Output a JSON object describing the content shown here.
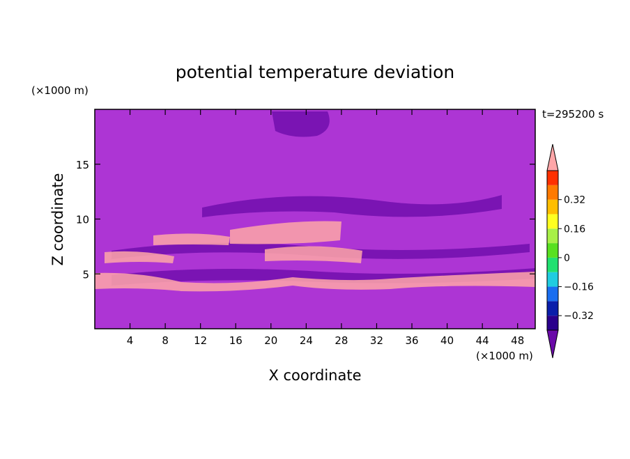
{
  "chart_data": {
    "type": "heatmap",
    "title": "potential temperature deviation",
    "xlabel": "X coordinate",
    "ylabel": "Z coordinate",
    "x_unit": "(×1000 m)",
    "y_unit": "(×1000 m)",
    "time_label": "t=295200 s",
    "xlim": [
      0,
      50
    ],
    "ylim": [
      0,
      20
    ],
    "x_ticks": [
      4,
      8,
      12,
      16,
      20,
      24,
      28,
      32,
      36,
      40,
      44,
      48
    ],
    "y_ticks": [
      5,
      10,
      15
    ],
    "x_tick_labels": [
      "4",
      "8",
      "12",
      "16",
      "20",
      "24",
      "28",
      "32",
      "36",
      "40",
      "44",
      "48"
    ],
    "y_tick_labels": [
      "5",
      "10",
      "15"
    ],
    "colorbar": {
      "levels": [
        -0.4,
        -0.32,
        -0.24,
        -0.16,
        -0.08,
        0,
        0.08,
        0.16,
        0.24,
        0.32,
        0.4
      ],
      "colors": [
        "#6a0aa8",
        "#2a008c",
        "#0a1eaa",
        "#1a6ef0",
        "#20cce0",
        "#20e070",
        "#58e020",
        "#a8f048",
        "#ffff20",
        "#ffbe00",
        "#ff7a00",
        "#ff3000",
        "#ffa6a8"
      ],
      "label_values": [
        0.32,
        0.16,
        0,
        -0.16,
        -0.32
      ],
      "labels": [
        "0.32",
        "0.16",
        "0",
        "−0.16",
        "−0.32"
      ],
      "extend": "both"
    }
  }
}
